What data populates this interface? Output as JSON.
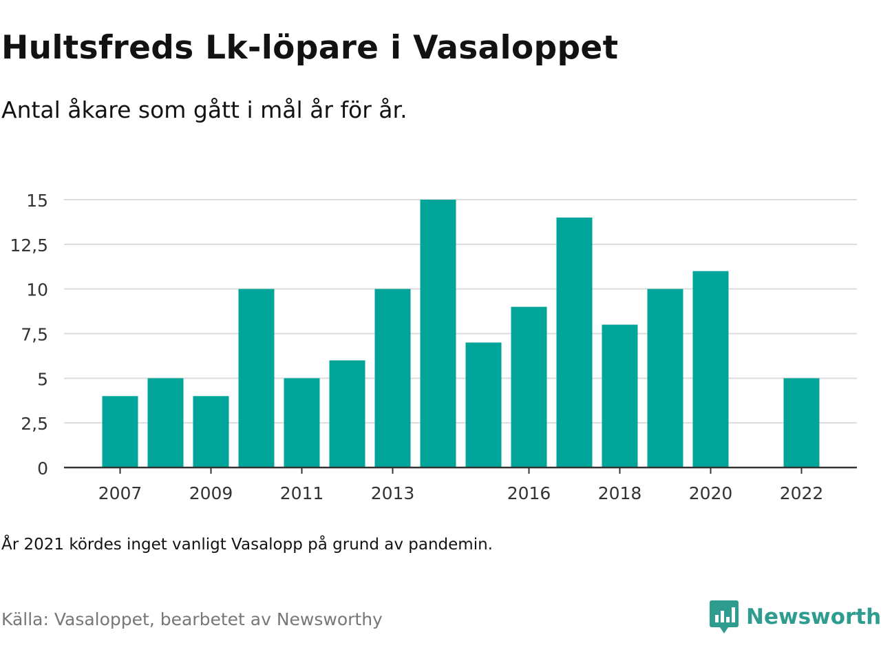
{
  "title": "Hultsfreds Lk-löpare i Vasaloppet",
  "subtitle": "Antal åkare som gått i mål år för år.",
  "note": "År 2021 kördes inget vanligt Vasalopp på grund av pandemin.",
  "source": "Källa: Vasaloppet, bearbetet av Newsworthy",
  "brand": {
    "name": "Newsworthy",
    "icon": "newsworthy-logo-icon",
    "color": "#2e9c8f"
  },
  "chart_data": {
    "type": "bar",
    "categories": [
      "2007",
      "2008",
      "2009",
      "2010",
      "2011",
      "2012",
      "2013",
      "2014",
      "2015",
      "2016",
      "2017",
      "2018",
      "2019",
      "2020",
      "2021",
      "2022"
    ],
    "values": [
      4,
      5,
      4,
      10,
      5,
      6,
      10,
      15,
      7,
      9,
      14,
      8,
      10,
      11,
      null,
      5
    ],
    "x_tick_labels": [
      "2007",
      "2009",
      "2011",
      "2013",
      "2016",
      "2018",
      "2020",
      "2022"
    ],
    "y_ticks": [
      0,
      2.5,
      5,
      7.5,
      10,
      12.5,
      15
    ],
    "y_tick_labels": [
      "0",
      "2,5",
      "5",
      "7,5",
      "10",
      "12,5",
      "15"
    ],
    "ylim": [
      0,
      15
    ],
    "bar_color": "#00a499",
    "grid": true
  }
}
